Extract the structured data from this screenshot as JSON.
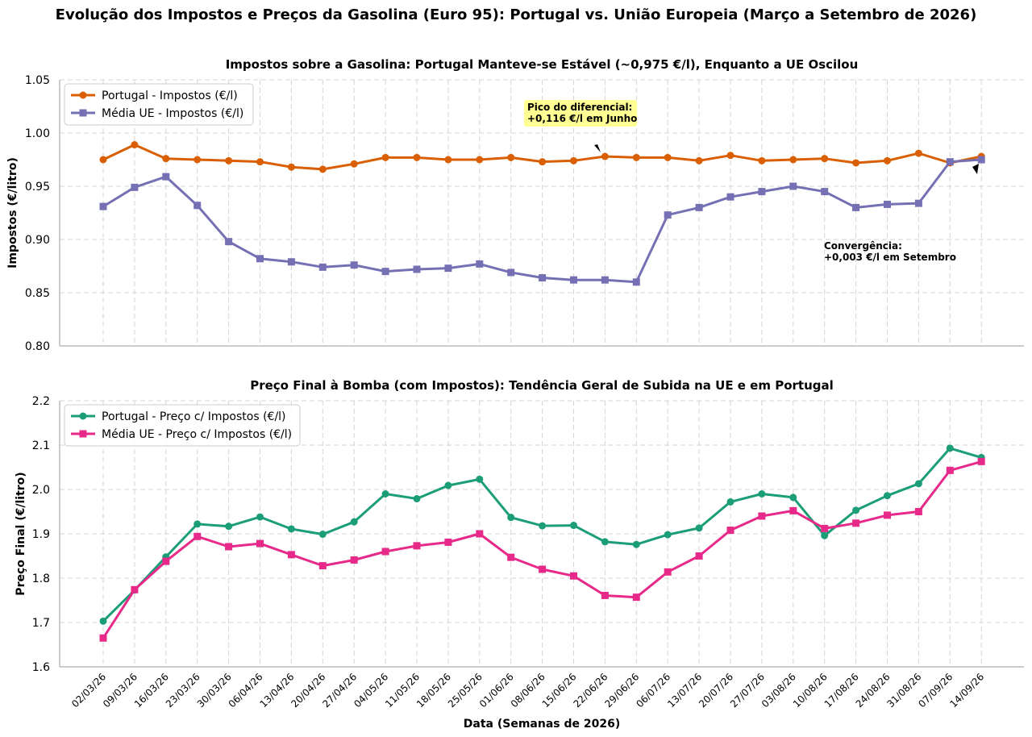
{
  "chart_data": {
    "title": "Evolução dos Impostos e Preços da Gasolina (Euro 95): Portugal vs. União Europeia (Março a Setembro de 2026)",
    "xlabel": "Data (Semanas de 2026)",
    "x": [
      "02/03/26",
      "09/03/26",
      "16/03/26",
      "23/03/26",
      "30/03/26",
      "06/04/26",
      "13/04/26",
      "20/04/26",
      "27/04/26",
      "04/05/26",
      "11/05/26",
      "18/05/26",
      "25/05/26",
      "01/06/26",
      "08/06/26",
      "15/06/26",
      "22/06/26",
      "29/06/26",
      "06/07/26",
      "13/07/26",
      "20/07/26",
      "27/07/26",
      "03/08/26",
      "10/08/26",
      "17/08/26",
      "24/08/26",
      "31/08/26",
      "07/09/26",
      "14/09/26"
    ],
    "panels": [
      {
        "type": "line",
        "title": "Impostos sobre a Gasolina: Portugal Manteve-se Estável (~0,975 €/l), Enquanto a UE Oscilou",
        "ylabel": "Impostos (€/litro)",
        "ylim": [
          0.8,
          1.05
        ],
        "yticks": [
          "0.80",
          "0.85",
          "0.90",
          "0.95",
          "1.00",
          "1.05"
        ],
        "grid": true,
        "legend_position": "upper-left",
        "series": [
          {
            "name": "Portugal - Impostos (€/l)",
            "color": "#d95f02",
            "marker": "circle",
            "values": [
              0.975,
              0.989,
              0.976,
              0.975,
              0.974,
              0.973,
              0.968,
              0.966,
              0.971,
              0.977,
              0.977,
              0.975,
              0.975,
              0.977,
              0.973,
              0.974,
              0.978,
              0.977,
              0.977,
              0.974,
              0.979,
              0.974,
              0.975,
              0.976,
              0.972,
              0.974,
              0.981,
              0.972,
              0.978
            ]
          },
          {
            "name": "Média UE - Impostos (€/l)",
            "color": "#7570b3",
            "marker": "square",
            "values": [
              0.931,
              0.949,
              0.959,
              0.932,
              0.898,
              0.882,
              0.879,
              0.874,
              0.876,
              0.87,
              0.872,
              0.873,
              0.877,
              0.869,
              0.864,
              0.862,
              0.862,
              0.86,
              0.923,
              0.93,
              0.94,
              0.945,
              0.95,
              0.945,
              0.93,
              0.933,
              0.934,
              0.973,
              0.975
            ]
          }
        ],
        "annotations": [
          {
            "text_lines": [
              "Pico do diferencial:",
              "+0,116 €/l em Junho"
            ],
            "boxed": true,
            "box_color": "#ffff80",
            "xy_index": 16,
            "xy_value": 0.978
          },
          {
            "text_lines": [
              "Convergência:",
              "+0,003 €/l em Setembro"
            ],
            "boxed": false,
            "xy_index": 28,
            "xy_value": 0.966
          }
        ]
      },
      {
        "type": "line",
        "title": "Preço Final à Bomba (com Impostos): Tendência Geral de Subida na UE e em Portugal",
        "ylabel": "Preço Final (€/litro)",
        "ylim": [
          1.6,
          2.2
        ],
        "yticks": [
          "1.6",
          "1.7",
          "1.8",
          "1.9",
          "2.0",
          "2.1",
          "2.2"
        ],
        "grid": true,
        "legend_position": "upper-left",
        "series": [
          {
            "name": "Portugal - Preço c/ Impostos (€/l)",
            "color": "#1b9e77",
            "marker": "circle",
            "values": [
              1.703,
              1.773,
              1.848,
              1.922,
              1.917,
              1.938,
              1.911,
              1.899,
              1.927,
              1.99,
              1.979,
              2.009,
              2.023,
              1.937,
              1.918,
              1.919,
              1.882,
              1.876,
              1.898,
              1.913,
              1.972,
              1.99,
              1.982,
              1.896,
              1.953,
              1.986,
              2.013,
              2.093,
              2.072
            ]
          },
          {
            "name": "Média UE - Preço c/ Impostos (€/l)",
            "color": "#e7298a",
            "marker": "square",
            "values": [
              1.665,
              1.774,
              1.838,
              1.894,
              1.871,
              1.878,
              1.853,
              1.828,
              1.841,
              1.86,
              1.873,
              1.881,
              1.9,
              1.847,
              1.82,
              1.805,
              1.761,
              1.757,
              1.814,
              1.85,
              1.908,
              1.94,
              1.952,
              1.912,
              1.924,
              1.942,
              1.95,
              2.043,
              2.063
            ]
          }
        ]
      }
    ]
  }
}
